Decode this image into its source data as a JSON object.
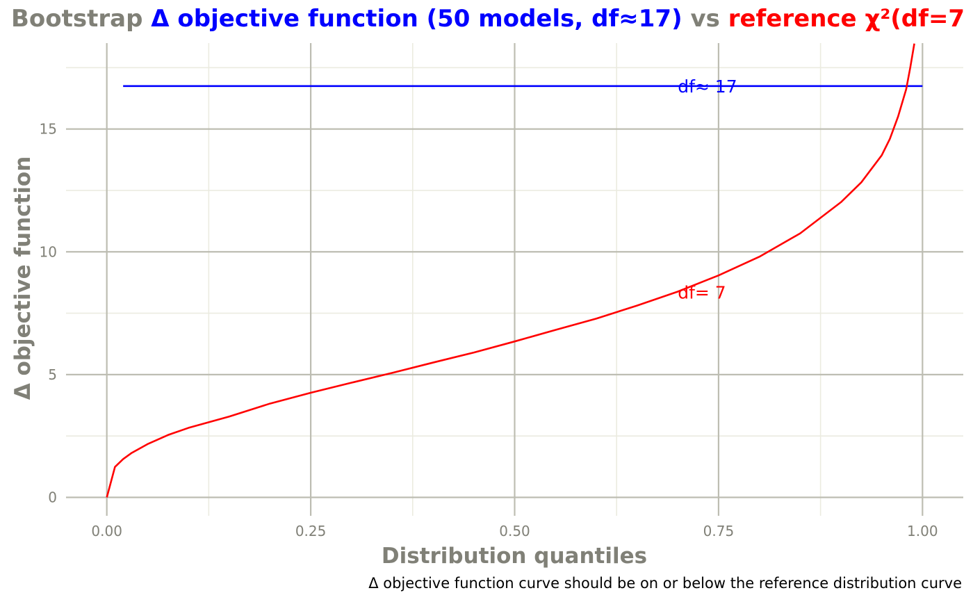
{
  "chart_data": {
    "type": "line",
    "title": {
      "parts": [
        {
          "text": "Bootstrap ",
          "color": "#808077"
        },
        {
          "text": "Δ objective function (50 models, df≈17)",
          "color": "#0000ff"
        },
        {
          "text": " vs ",
          "color": "#808077"
        },
        {
          "text": "reference χ²(df=7",
          "color": "#ff0000"
        }
      ]
    },
    "xlabel": "Distribution quantiles",
    "ylabel": "Δ objective function",
    "caption": "Δ objective function curve should be on or below the reference distribution curve",
    "xlim": [
      -0.05,
      1.05
    ],
    "ylim": [
      -0.75,
      18.5
    ],
    "grid": true,
    "legend": "none",
    "x_ticks": [
      {
        "value": 0,
        "label": "0.00"
      },
      {
        "value": 0.25,
        "label": "0.25"
      },
      {
        "value": 0.5,
        "label": "0.50"
      },
      {
        "value": 0.75,
        "label": "0.75"
      },
      {
        "value": 1,
        "label": "1.00"
      }
    ],
    "y_ticks": [
      {
        "value": 0,
        "label": "0"
      },
      {
        "value": 5,
        "label": "5"
      },
      {
        "value": 10,
        "label": "10"
      },
      {
        "value": 15,
        "label": "15"
      }
    ],
    "x_minor": [
      0.125,
      0.375,
      0.625,
      0.875
    ],
    "y_minor": [
      2.5,
      7.5,
      12.5,
      17.5
    ],
    "series": [
      {
        "color": "#0000ff",
        "x": [
          0.02,
          1.0
        ],
        "y": [
          16.75,
          16.75
        ]
      },
      {
        "color": "#ff0000",
        "x": [
          0,
          0.01,
          0.02,
          0.03,
          0.05,
          0.075,
          0.1,
          0.15,
          0.2,
          0.25,
          0.3,
          0.35,
          0.4,
          0.45,
          0.5,
          0.55,
          0.6,
          0.65,
          0.7,
          0.75,
          0.8,
          0.85,
          0.9,
          0.925,
          0.95,
          0.96,
          0.97,
          0.98,
          0.985,
          0.99
        ],
        "y": [
          0,
          1.24,
          1.56,
          1.8,
          2.17,
          2.54,
          2.83,
          3.29,
          3.82,
          4.26,
          4.67,
          5.07,
          5.49,
          5.9,
          6.35,
          6.82,
          7.28,
          7.81,
          8.38,
          9.04,
          9.8,
          10.75,
          12.02,
          12.83,
          13.93,
          14.6,
          15.5,
          16.62,
          17.5,
          18.48
        ]
      }
    ],
    "annotations": [
      {
        "text": "df≈ 17",
        "x": 0.7,
        "y": 16.75,
        "color": "#0000ff"
      },
      {
        "text": "df= 7",
        "x": 0.7,
        "y": 8.35,
        "color": "#ff0000"
      }
    ]
  }
}
